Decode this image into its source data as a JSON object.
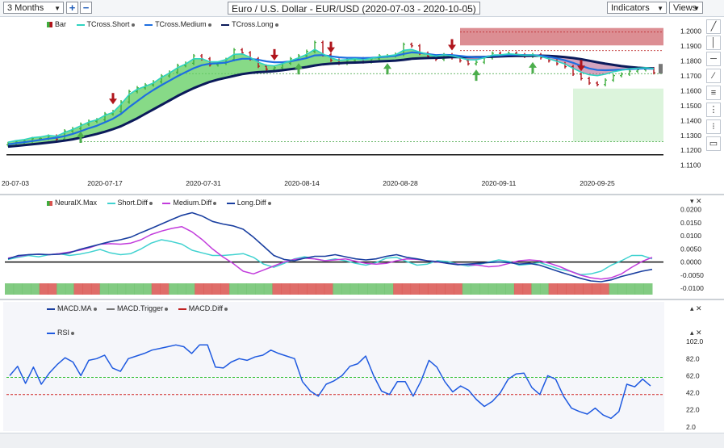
{
  "toolbar": {
    "period": "3 Months",
    "zoom_in": "+",
    "zoom_out": "−",
    "title": "Euro / U.S. Dollar - EUR/USD (2020-07-03 - 2020-10-05)",
    "indicators": "Indicators",
    "views": "Views"
  },
  "colors": {
    "tcross_short": "#2fd3c0",
    "tcross_medium": "#1e6fe0",
    "tcross_long": "#0b1a5a",
    "up_bar": "#3dae3d",
    "down_bar": "#b0151c",
    "cloud_green": "#5fce5f",
    "neural_red": "#d9534f",
    "neural_green": "#6cc26c",
    "short_diff": "#40d2d0",
    "medium_diff": "#c23cdc",
    "long_diff": "#1a3fa0",
    "rsi": "#1f5ae0",
    "rsi_upper": "#30c030",
    "rsi_lower": "#d02020"
  },
  "panel1": {
    "legend": [
      "Bar",
      "TCross.Short",
      "TCross.Medium",
      "TCross.Long"
    ]
  },
  "panel2": {
    "legend": [
      "NeuralX.Max",
      "Short.Diff",
      "Medium.Diff",
      "Long.Diff"
    ]
  },
  "panel3": {
    "legend_macd": [
      "MACD.MA",
      "MACD.Trigger",
      "MACD.Diff"
    ],
    "legend_rsi": "RSI"
  },
  "chart_data": [
    {
      "type": "line",
      "title": "Euro / U.S. Dollar - EUR/USD (2020-07-03 - 2020-10-05)",
      "x_ticks": [
        "20-07-03",
        "2020-07-17",
        "2020-07-31",
        "2020-08-14",
        "2020-08-28",
        "2020-09-11",
        "2020-09-25"
      ],
      "y_ticks": [
        "1.2000",
        "1.1900",
        "1.1800",
        "1.1700",
        "1.1600",
        "1.1500",
        "1.1400",
        "1.1300",
        "1.1200",
        "1.1100"
      ],
      "ylim": [
        1.106,
        1.208
      ],
      "close": [
        1.1245,
        1.1255,
        1.1262,
        1.1278,
        1.128,
        1.1295,
        1.1275,
        1.133,
        1.1345,
        1.1375,
        1.1395,
        1.1405,
        1.1445,
        1.146,
        1.1525,
        1.1595,
        1.162,
        1.164,
        1.166,
        1.17,
        1.1725,
        1.177,
        1.1785,
        1.1835,
        1.1815,
        1.1775,
        1.1785,
        1.181,
        1.1875,
        1.1855,
        1.1815,
        1.1765,
        1.1745,
        1.1755,
        1.1785,
        1.1815,
        1.1835,
        1.1865,
        1.1925,
        1.1842,
        1.1805,
        1.1785,
        1.1805,
        1.1815,
        1.1795,
        1.1815,
        1.1835,
        1.1835,
        1.1845,
        1.1912,
        1.1902,
        1.1852,
        1.1832,
        1.1812,
        1.1842,
        1.1822,
        1.1802,
        1.1782,
        1.1792,
        1.1822,
        1.1852,
        1.1842,
        1.1852,
        1.1842,
        1.1832,
        1.1842,
        1.1822,
        1.1802,
        1.1782,
        1.1762,
        1.1712,
        1.1682,
        1.1652,
        1.1642,
        1.1672,
        1.1702,
        1.1712,
        1.1732,
        1.1742,
        1.1748,
        1.1722
      ],
      "tcross_short": [
        1.1255,
        1.1265,
        1.1272,
        1.1285,
        1.129,
        1.13,
        1.1295,
        1.132,
        1.134,
        1.1365,
        1.139,
        1.1405,
        1.1435,
        1.1455,
        1.151,
        1.1575,
        1.161,
        1.163,
        1.1652,
        1.169,
        1.172,
        1.1755,
        1.178,
        1.1815,
        1.1815,
        1.1795,
        1.1795,
        1.181,
        1.1845,
        1.1848,
        1.1825,
        1.1792,
        1.1772,
        1.1768,
        1.1782,
        1.1802,
        1.1822,
        1.1845,
        1.1878,
        1.1848,
        1.1822,
        1.1805,
        1.181,
        1.1815,
        1.1808,
        1.1818,
        1.183,
        1.1835,
        1.1842,
        1.1872,
        1.1878,
        1.186,
        1.1845,
        1.1832,
        1.1842,
        1.1835,
        1.1822,
        1.1808,
        1.1808,
        1.1822,
        1.184,
        1.1842,
        1.1848,
        1.1845,
        1.1838,
        1.1842,
        1.183,
        1.1815,
        1.1798,
        1.178,
        1.1752,
        1.1725,
        1.1708,
        1.1702,
        1.1712,
        1.1728,
        1.1738,
        1.1748,
        1.1752,
        1.1755,
        1.1748
      ],
      "tcross_medium": [
        1.124,
        1.1248,
        1.1255,
        1.1262,
        1.127,
        1.1278,
        1.1285,
        1.1295,
        1.131,
        1.1328,
        1.1348,
        1.1365,
        1.1388,
        1.1412,
        1.1445,
        1.149,
        1.153,
        1.157,
        1.1605,
        1.1638,
        1.1668,
        1.1698,
        1.1725,
        1.1752,
        1.1772,
        1.1782,
        1.1785,
        1.179,
        1.1805,
        1.1815,
        1.1815,
        1.1808,
        1.1798,
        1.1792,
        1.1792,
        1.1798,
        1.1808,
        1.182,
        1.1838,
        1.184,
        1.1832,
        1.1825,
        1.1822,
        1.1822,
        1.182,
        1.1822,
        1.1826,
        1.183,
        1.1835,
        1.1848,
        1.1858,
        1.1855,
        1.1848,
        1.184,
        1.1842,
        1.184,
        1.1835,
        1.1828,
        1.1825,
        1.1828,
        1.1835,
        1.1838,
        1.1842,
        1.1842,
        1.184,
        1.184,
        1.1836,
        1.1828,
        1.1818,
        1.1805,
        1.1788,
        1.1768,
        1.175,
        1.174,
        1.1738,
        1.174,
        1.1742,
        1.1745,
        1.1748,
        1.175,
        1.1748
      ],
      "tcross_long": [
        1.1225,
        1.123,
        1.1235,
        1.124,
        1.1246,
        1.1252,
        1.1258,
        1.1265,
        1.1274,
        1.1285,
        1.1297,
        1.131,
        1.1325,
        1.1342,
        1.1362,
        1.1388,
        1.1415,
        1.1445,
        1.1475,
        1.1505,
        1.1535,
        1.1565,
        1.1592,
        1.1618,
        1.164,
        1.166,
        1.1675,
        1.1688,
        1.17,
        1.1712,
        1.172,
        1.1725,
        1.1728,
        1.1732,
        1.1738,
        1.1745,
        1.1752,
        1.176,
        1.177,
        1.1778,
        1.1782,
        1.1785,
        1.1788,
        1.179,
        1.1792,
        1.1795,
        1.1798,
        1.18,
        1.1803,
        1.1808,
        1.1815,
        1.1818,
        1.182,
        1.1822,
        1.1824,
        1.1826,
        1.1826,
        1.1826,
        1.1826,
        1.1827,
        1.1829,
        1.1831,
        1.1833,
        1.1834,
        1.1835,
        1.1836,
        1.1836,
        1.1834,
        1.1831,
        1.1826,
        1.182,
        1.1812,
        1.1802,
        1.1792,
        1.1782,
        1.1774,
        1.1766,
        1.176,
        1.1755,
        1.1752,
        1.175
      ],
      "down_arrows": [
        13,
        33,
        40,
        55,
        71,
        83,
        88,
        95,
        101
      ],
      "up_arrows": [
        9,
        36,
        47,
        58,
        65,
        87,
        105
      ],
      "horizontal_levels": [
        1.1995,
        1.187,
        1.1715,
        1.1258,
        1.117
      ]
    },
    {
      "type": "line",
      "y_ticks": [
        "0.0200",
        "0.0150",
        "0.0100",
        "0.0050",
        "0.0000",
        "-0.0050",
        "-0.0100"
      ],
      "ylim": [
        -0.0115,
        0.0205
      ],
      "short_diff": [
        0.001,
        0.0018,
        0.0025,
        0.002,
        0.0028,
        0.0032,
        0.0025,
        0.003,
        0.0038,
        0.0048,
        0.0035,
        0.0028,
        0.0032,
        0.005,
        0.0072,
        0.0085,
        0.0078,
        0.0068,
        0.0045,
        0.0035,
        0.0025,
        0.0025,
        0.0028,
        0.0032,
        0.0018,
        -0.0008,
        -0.002,
        -0.0005,
        0.0012,
        0.002,
        0.0012,
        0.0005,
        0.0012,
        0.0005,
        -0.0005,
        -0.0012,
        -0.0002,
        0.0015,
        0.0018,
        0.0002,
        -0.0012,
        -0.0008,
        0.0005,
        0.0002,
        -0.0008,
        -0.0015,
        -0.001,
        0.0,
        0.0008,
        0.0002,
        -0.0012,
        -0.0008,
        -0.0002,
        -0.0015,
        -0.0028,
        -0.0035,
        -0.0048,
        -0.0045,
        -0.0035,
        -0.0012,
        0.0005,
        0.0025,
        0.0025,
        0.0012
      ],
      "medium_diff": [
        0.0015,
        0.0022,
        0.0028,
        0.003,
        0.0028,
        0.0032,
        0.0038,
        0.0045,
        0.0055,
        0.0068,
        0.007,
        0.0068,
        0.0072,
        0.0085,
        0.0105,
        0.0118,
        0.0128,
        0.0135,
        0.0115,
        0.0085,
        0.005,
        0.002,
        -0.0005,
        -0.0035,
        -0.0045,
        -0.003,
        -0.0015,
        0.0,
        0.001,
        0.0015,
        0.0012,
        0.0005,
        0.0008,
        0.0012,
        0.0003,
        -0.0005,
        -0.0008,
        -0.0005,
        0.0005,
        0.0012,
        0.001,
        0.0005,
        0.0,
        -0.0005,
        -0.0008,
        -0.001,
        -0.0012,
        -0.0018,
        -0.0015,
        -0.0005,
        0.0005,
        0.0008,
        0.0005,
        -0.0005,
        -0.0018,
        -0.0035,
        -0.005,
        -0.006,
        -0.0065,
        -0.006,
        -0.0045,
        -0.002,
        0.0002,
        0.0018
      ],
      "long_diff": [
        0.0012,
        0.0025,
        0.0028,
        0.003,
        0.0028,
        0.003,
        0.0035,
        0.0048,
        0.0058,
        0.0068,
        0.0078,
        0.0085,
        0.0095,
        0.0112,
        0.0128,
        0.0145,
        0.0162,
        0.0178,
        0.0188,
        0.0175,
        0.0155,
        0.0145,
        0.0138,
        0.0125,
        0.0095,
        0.006,
        0.0025,
        0.001,
        0.0005,
        0.0015,
        0.0022,
        0.0022,
        0.0028,
        0.002,
        0.0012,
        0.0008,
        0.0012,
        0.0022,
        0.0028,
        0.0018,
        0.0012,
        0.0005,
        0.0002,
        -0.0005,
        -0.001,
        -0.0008,
        -0.0005,
        -0.0002,
        0.0,
        -0.0002,
        -0.0008,
        -0.0005,
        -0.0012,
        -0.0025,
        -0.0038,
        -0.005,
        -0.0062,
        -0.0072,
        -0.0075,
        -0.0068,
        -0.0055,
        -0.0045,
        -0.0035,
        -0.0028
      ],
      "neural_blocks": [
        "g",
        "g",
        "g",
        "g",
        "r",
        "r",
        "g",
        "g",
        "r",
        "r",
        "r",
        "g",
        "g",
        "g",
        "g",
        "g",
        "g",
        "r",
        "r",
        "g",
        "g",
        "g",
        "r",
        "r",
        "r",
        "r",
        "g",
        "g",
        "g",
        "g",
        "g",
        "r",
        "r",
        "r",
        "r",
        "r",
        "r",
        "r",
        "g",
        "g",
        "g",
        "g",
        "g",
        "g",
        "g",
        "r",
        "r",
        "r",
        "r",
        "r",
        "r",
        "r",
        "r",
        "g",
        "g",
        "g",
        "g",
        "g",
        "g",
        "r",
        "r",
        "g",
        "g",
        "r",
        "r",
        "r",
        "r",
        "r",
        "r",
        "r",
        "g",
        "g",
        "g",
        "g",
        "g"
      ]
    },
    {
      "type": "line",
      "y_ticks": [
        "102.0",
        "82.0",
        "62.0",
        "42.0",
        "22.0",
        "2.0"
      ],
      "ylim": [
        0,
        104
      ],
      "levels": [
        60,
        40
      ],
      "rsi": [
        62,
        73,
        53,
        72,
        52,
        65,
        75,
        83,
        78,
        62,
        80,
        82,
        86,
        71,
        67,
        82,
        85,
        88,
        92,
        94,
        96,
        98,
        96,
        88,
        98,
        98,
        72,
        71,
        78,
        82,
        80,
        84,
        86,
        92,
        88,
        85,
        82,
        55,
        44,
        38,
        52,
        56,
        62,
        73,
        76,
        85,
        62,
        44,
        40,
        55,
        55,
        38,
        56,
        80,
        72,
        55,
        43,
        50,
        45,
        34,
        26,
        32,
        42,
        58,
        64,
        65,
        48,
        40,
        62,
        58,
        38,
        24,
        20,
        17,
        24,
        16,
        12,
        20,
        52,
        49,
        58,
        50
      ]
    }
  ]
}
